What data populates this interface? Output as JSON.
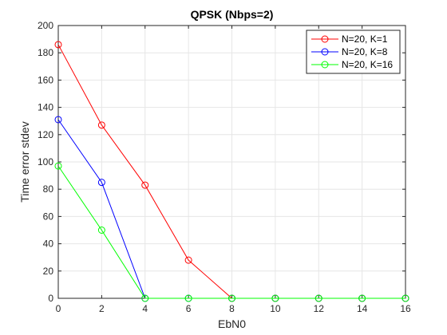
{
  "chart_data": {
    "type": "line",
    "title": "QPSK (Nbps=2)",
    "xlabel": "EbN0",
    "ylabel": "Time error stdev",
    "xlim": [
      0,
      16
    ],
    "ylim": [
      0,
      200
    ],
    "xticks": [
      0,
      2,
      4,
      6,
      8,
      10,
      12,
      14,
      16
    ],
    "yticks": [
      0,
      20,
      40,
      60,
      80,
      100,
      120,
      140,
      160,
      180,
      200
    ],
    "grid": true,
    "legend_position": "top-right",
    "series": [
      {
        "name": "N=20, K=1",
        "color": "#ff0000",
        "marker": "circle",
        "x": [
          0,
          2,
          4,
          6,
          8,
          10,
          12,
          14,
          16
        ],
        "y": [
          186,
          127,
          83,
          28,
          0,
          0,
          0,
          0,
          0
        ]
      },
      {
        "name": "N=20, K=8",
        "color": "#0000ff",
        "marker": "circle",
        "x": [
          0,
          2,
          4,
          6,
          8,
          10,
          12,
          14,
          16
        ],
        "y": [
          131,
          85,
          0,
          0,
          0,
          0,
          0,
          0,
          0
        ]
      },
      {
        "name": "N=20, K=16",
        "color": "#00ff00",
        "marker": "circle",
        "x": [
          0,
          2,
          4,
          6,
          8,
          10,
          12,
          14,
          16
        ],
        "y": [
          97,
          50,
          0,
          0,
          0,
          0,
          0,
          0,
          0
        ]
      }
    ]
  }
}
